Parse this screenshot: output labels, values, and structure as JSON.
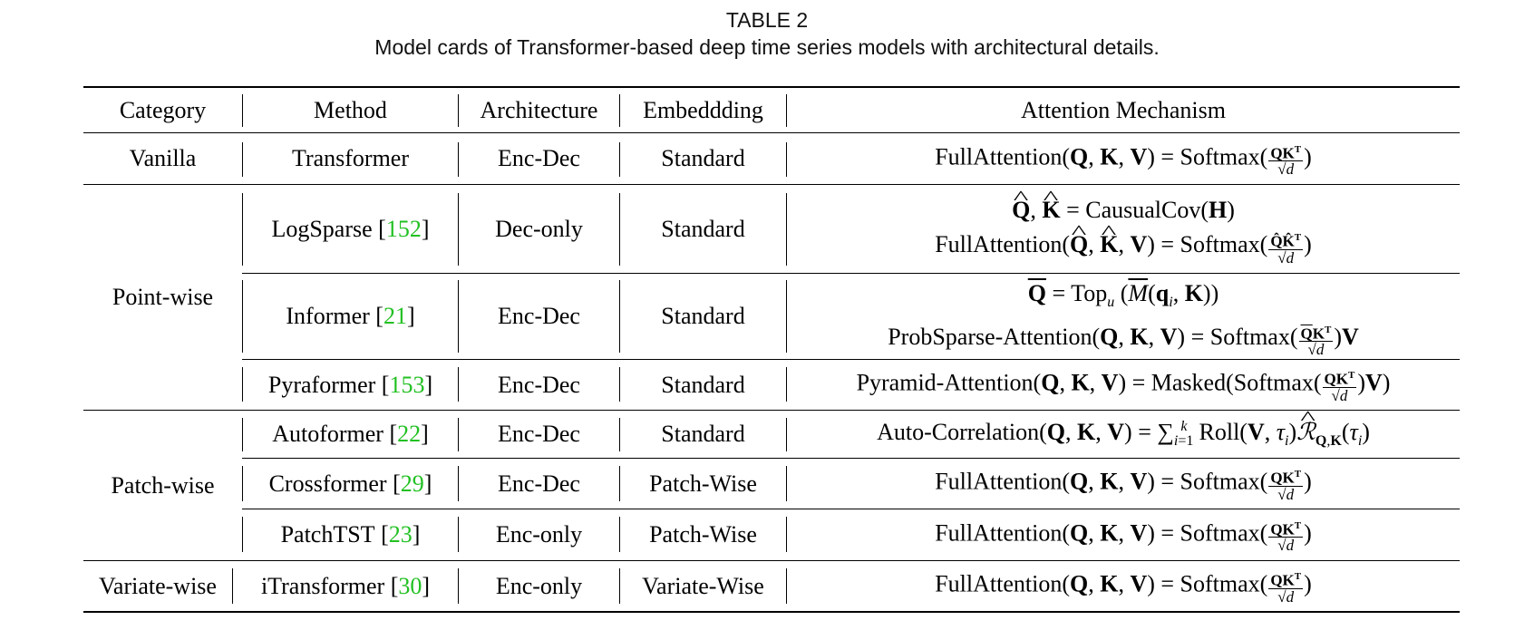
{
  "caption": {
    "label": "TABLE 2",
    "text": "Model cards of Transformer-based deep time series models with architectural details."
  },
  "columns": [
    "Category",
    "Method",
    "Architecture",
    "Embeddding",
    "Attention Mechanism"
  ],
  "rows": [
    {
      "category": "Vanilla",
      "method": "Transformer",
      "ref": "",
      "architecture": "Enc-Dec",
      "embedding": "Standard",
      "attention": [
        "FullAttention(Q, K, V) = Softmax(QKᵀ/√d)"
      ]
    },
    {
      "category": "Point-wise",
      "method": "LogSparse",
      "ref": "152",
      "architecture": "Dec-only",
      "embedding": "Standard",
      "attention": [
        "Q̂, K̂ = CausualCov(H)",
        "FullAttention(Q̂, K̂, V) = Softmax(Q̂K̂ᵀ/√d)"
      ]
    },
    {
      "category": "Point-wise",
      "method": "Informer",
      "ref": "21",
      "architecture": "Enc-Dec",
      "embedding": "Standard",
      "attention": [
        "Q̄ = Top_u (M̄(q_i, K))",
        "ProbSparse-Attention(Q, K, V) = Softmax(Q̄Kᵀ/√d)V"
      ]
    },
    {
      "category": "Point-wise",
      "method": "Pyraformer",
      "ref": "153",
      "architecture": "Enc-Dec",
      "embedding": "Standard",
      "attention": [
        "Pyramid-Attention(Q, K, V) = Masked(Softmax(QKᵀ/√d)V)"
      ]
    },
    {
      "category": "Patch-wise",
      "method": "Autoformer",
      "ref": "22",
      "architecture": "Enc-Dec",
      "embedding": "Standard",
      "attention": [
        "Auto-Correlation(Q, K, V) = Σ_{i=1}^{k} Roll(V, τ_i) R̂_{Q,K}(τ_i)"
      ]
    },
    {
      "category": "Patch-wise",
      "method": "Crossformer",
      "ref": "29",
      "architecture": "Enc-Dec",
      "embedding": "Patch-Wise",
      "attention": [
        "FullAttention(Q, K, V) = Softmax(QKᵀ/√d)"
      ]
    },
    {
      "category": "Patch-wise",
      "method": "PatchTST",
      "ref": "23",
      "architecture": "Enc-only",
      "embedding": "Patch-Wise",
      "attention": [
        "FullAttention(Q, K, V) = Softmax(QKᵀ/√d)"
      ]
    },
    {
      "category": "Variate-wise",
      "method": "iTransformer",
      "ref": "30",
      "architecture": "Enc-only",
      "embedding": "Variate-Wise",
      "attention": [
        "FullAttention(Q, K, V) = Softmax(QKᵀ/√d)"
      ]
    }
  ],
  "groups": {
    "vanilla": "Vanilla",
    "point_wise": "Point-wise",
    "patch_wise": "Patch-wise",
    "variate_wise": "Variate-wise"
  },
  "colors": {
    "reference": "#22c022",
    "rule": "#000000"
  }
}
